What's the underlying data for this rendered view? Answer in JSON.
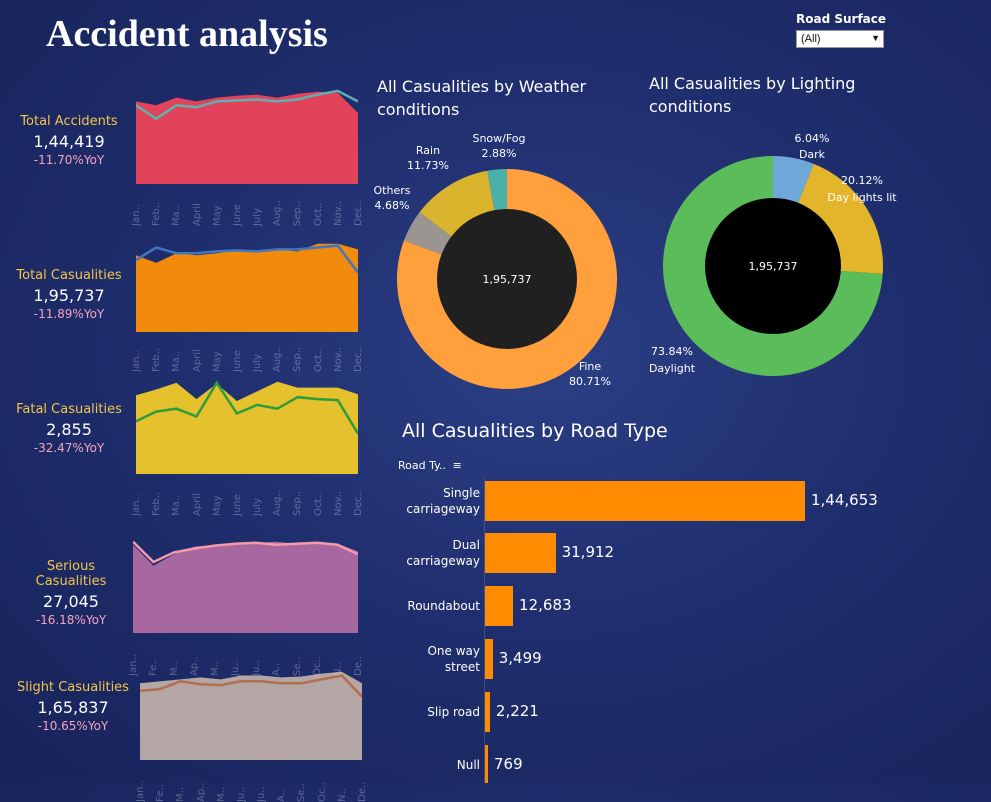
{
  "header": {
    "title": "Accident analysis"
  },
  "filter": {
    "label": "Road Surface",
    "value": "(All)"
  },
  "kpis": [
    {
      "label": "Total Accidents",
      "value": "1,44,419",
      "yoy": "-11.70%YoY"
    },
    {
      "label": "Total Casualities",
      "value": "1,95,737",
      "yoy": "-11.89%YoY"
    },
    {
      "label": "Fatal Casualities",
      "value": "2,855",
      "yoy": "-32.47%YoY"
    },
    {
      "label": "Serious Casualities",
      "value": "27,045",
      "yoy": "-16.18%YoY"
    },
    {
      "label": "Slight Casualities",
      "value": "1,65,837",
      "yoy": "-10.65%YoY"
    }
  ],
  "months": [
    "Jan..",
    "Feb..",
    "Ma..",
    "April",
    "May",
    "June",
    "July",
    "Aug..",
    "Sep..",
    "Oct..",
    "Nov..",
    "Dec.."
  ],
  "months_short": [
    "Jan..",
    "Fe..",
    "M..",
    "Ap..",
    "M..",
    "Ju..",
    "Ju..",
    "A..",
    "Se..",
    "Oc..",
    "N..",
    "De.."
  ],
  "colors": {
    "accidents_area": "#e0435a",
    "accidents_line": "#5fb0b0",
    "casualties_area": "#f28a0c",
    "casualties_line": "#3f78c0",
    "fatal_area": "#e6c12e",
    "fatal_line": "#2e9c3a",
    "serious_area": "#a7679f",
    "serious_line": "#f59aaa",
    "slight_area": "#b5a6a6",
    "slight_line": "#b07050",
    "road_bar": "#ff8c00"
  },
  "weather": {
    "title": "All Casualities by Weather conditions",
    "center": "1,95,737",
    "segments": [
      {
        "name": "Fine",
        "pct": "80.71%",
        "color": "#ffa03c"
      },
      {
        "name": "Others",
        "pct": "4.68%",
        "color": "#9a9590"
      },
      {
        "name": "Rain",
        "pct": "11.73%",
        "color": "#dbb42d"
      },
      {
        "name": "Snow/Fog",
        "pct": "2.88%",
        "color": "#4bb0a8"
      }
    ]
  },
  "lighting": {
    "title": "All Casualities by Lighting conditions",
    "center": "1,95,737",
    "segments": [
      {
        "name": "Dark",
        "pct": "6.04%",
        "color": "#6fa8d8"
      },
      {
        "name": "Day lights lit",
        "pct": "20.12%",
        "color": "#e2b52a"
      },
      {
        "name": "Daylight",
        "pct": "73.84%",
        "color": "#5bbd5a"
      }
    ]
  },
  "road": {
    "title": "All Casualities by Road Type",
    "header": "Road Ty..",
    "rows": [
      {
        "line1": "Single",
        "line2": "carriageway",
        "value": "1,44,653"
      },
      {
        "line1": "Dual",
        "line2": "carriageway",
        "value": "31,912"
      },
      {
        "line1": "Roundabout",
        "line2": "",
        "value": "12,683"
      },
      {
        "line1": "One way",
        "line2": "street",
        "value": "3,499"
      },
      {
        "line1": "Slip road",
        "line2": "",
        "value": "2,221"
      },
      {
        "line1": "Null",
        "line2": "",
        "value": "769"
      }
    ]
  },
  "chart_data": [
    {
      "type": "area",
      "categories": [
        "Jan..",
        "Feb..",
        "Ma..",
        "April",
        "May",
        "June",
        "July",
        "Aug..",
        "Sep..",
        "Oct..",
        "Nov..",
        "Dec.."
      ],
      "series": [
        {
          "values": [
            0.86,
            0.82,
            0.9,
            0.86,
            0.9,
            0.92,
            0.93,
            0.9,
            0.94,
            0.96,
            0.95,
            0.74
          ]
        },
        {
          "values": [
            0.82,
            0.68,
            0.82,
            0.8,
            0.86,
            0.87,
            0.88,
            0.86,
            0.88,
            0.93,
            0.97,
            0.86
          ]
        }
      ],
      "ylim": [
        0,
        1
      ]
    },
    {
      "type": "area",
      "categories": [
        "Jan..",
        "Feb..",
        "Ma..",
        "April",
        "May",
        "June",
        "July",
        "Aug..",
        "Sep..",
        "Oct..",
        "Nov..",
        "Dec.."
      ],
      "series": [
        {
          "values": [
            0.8,
            0.72,
            0.82,
            0.8,
            0.82,
            0.85,
            0.85,
            0.86,
            0.84,
            0.92,
            0.92,
            0.86
          ]
        },
        {
          "values": [
            0.75,
            0.88,
            0.82,
            0.82,
            0.84,
            0.85,
            0.84,
            0.86,
            0.86,
            0.88,
            0.9,
            0.62
          ]
        }
      ],
      "ylim": [
        0,
        1
      ]
    },
    {
      "type": "area",
      "categories": [
        "Jan..",
        "Feb..",
        "Ma..",
        "April",
        "May",
        "June",
        "July",
        "Aug..",
        "Sep..",
        "Oct..",
        "Nov..",
        "Dec.."
      ],
      "series": [
        {
          "values": [
            0.82,
            0.88,
            0.95,
            0.78,
            0.94,
            0.76,
            0.86,
            0.96,
            0.9,
            0.9,
            0.9,
            0.83
          ]
        },
        {
          "values": [
            0.55,
            0.65,
            0.68,
            0.6,
            0.95,
            0.63,
            0.72,
            0.68,
            0.8,
            0.78,
            0.77,
            0.42
          ]
        }
      ],
      "ylim": [
        0,
        1
      ]
    },
    {
      "type": "area",
      "categories": [
        "Jan..",
        "Feb..",
        "Ma..",
        "April",
        "May",
        "June",
        "July",
        "Aug..",
        "Sep..",
        "Oct..",
        "Nov..",
        "Dec.."
      ],
      "series": [
        {
          "values": [
            0.92,
            0.7,
            0.82,
            0.9,
            0.92,
            0.94,
            0.94,
            0.95,
            0.93,
            0.94,
            0.93,
            0.85
          ]
        },
        {
          "values": [
            0.95,
            0.74,
            0.84,
            0.88,
            0.91,
            0.93,
            0.94,
            0.92,
            0.93,
            0.94,
            0.92,
            0.82
          ]
        }
      ],
      "ylim": [
        0,
        1
      ]
    },
    {
      "type": "area",
      "categories": [
        "Jan..",
        "Feb..",
        "Ma..",
        "April",
        "May",
        "June",
        "July",
        "Aug..",
        "Sep..",
        "Oct..",
        "Nov..",
        "Dec.."
      ],
      "series": [
        {
          "values": [
            0.8,
            0.82,
            0.84,
            0.86,
            0.84,
            0.88,
            0.88,
            0.86,
            0.87,
            0.9,
            0.92,
            0.8
          ]
        },
        {
          "values": [
            0.72,
            0.74,
            0.82,
            0.79,
            0.78,
            0.82,
            0.82,
            0.8,
            0.8,
            0.84,
            0.88,
            0.66
          ]
        }
      ],
      "ylim": [
        0,
        1
      ]
    },
    {
      "type": "pie",
      "title": "All Casualities by Weather conditions",
      "categories": [
        "Fine",
        "Others",
        "Rain",
        "Snow/Fog"
      ],
      "values": [
        80.71,
        4.68,
        11.73,
        2.88
      ]
    },
    {
      "type": "pie",
      "title": "All Casualities by Lighting conditions",
      "categories": [
        "Dark",
        "Day lights lit",
        "Daylight"
      ],
      "values": [
        6.04,
        20.12,
        73.84
      ]
    },
    {
      "type": "bar",
      "title": "All Casualities by Road Type",
      "categories": [
        "Single carriageway",
        "Dual carriageway",
        "Roundabout",
        "One way street",
        "Slip road",
        "Null"
      ],
      "values": [
        144653,
        31912,
        12683,
        3499,
        2221,
        769
      ]
    }
  ]
}
